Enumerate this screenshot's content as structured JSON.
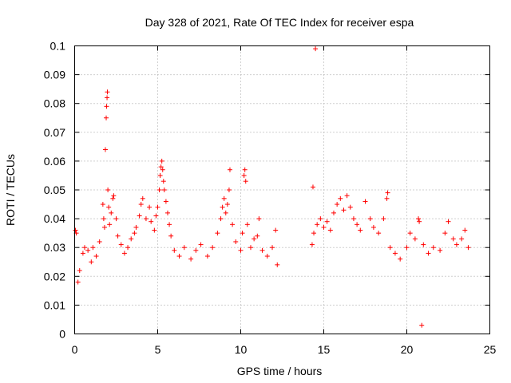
{
  "chart_data": {
    "type": "scatter",
    "title": "Day 328 of 2021, Rate Of TEC Index for receiver espa",
    "xlabel": "GPS time / hours",
    "ylabel": "ROTI / TECUs",
    "xlim": [
      0,
      25
    ],
    "ylim": [
      0,
      0.1
    ],
    "x_ticks": [
      "0",
      "5",
      "10",
      "15",
      "20",
      "25"
    ],
    "y_ticks": [
      "0",
      "0.01",
      "0.02",
      "0.03",
      "0.04",
      "0.05",
      "0.06",
      "0.07",
      "0.08",
      "0.09",
      "0.1"
    ],
    "grid": true,
    "marker": "+",
    "marker_color": "#ff0000",
    "series": [
      {
        "points": [
          [
            0.05,
            0.036
          ],
          [
            0.1,
            0.035
          ],
          [
            0.2,
            0.018
          ],
          [
            0.3,
            0.022
          ],
          [
            0.5,
            0.028
          ],
          [
            0.6,
            0.03
          ],
          [
            0.8,
            0.029
          ],
          [
            1.0,
            0.025
          ],
          [
            1.1,
            0.03
          ],
          [
            1.3,
            0.027
          ],
          [
            1.5,
            0.032
          ],
          [
            1.7,
            0.045
          ],
          [
            1.75,
            0.04
          ],
          [
            1.8,
            0.037
          ],
          [
            1.85,
            0.064
          ],
          [
            1.9,
            0.075
          ],
          [
            1.92,
            0.079
          ],
          [
            1.95,
            0.082
          ],
          [
            1.97,
            0.084
          ],
          [
            2.0,
            0.05
          ],
          [
            2.05,
            0.044
          ],
          [
            2.1,
            0.038
          ],
          [
            2.2,
            0.042
          ],
          [
            2.3,
            0.047
          ],
          [
            2.35,
            0.048
          ],
          [
            2.5,
            0.04
          ],
          [
            2.6,
            0.034
          ],
          [
            2.8,
            0.031
          ],
          [
            3.0,
            0.028
          ],
          [
            3.2,
            0.03
          ],
          [
            3.4,
            0.033
          ],
          [
            3.6,
            0.035
          ],
          [
            3.7,
            0.037
          ],
          [
            3.9,
            0.041
          ],
          [
            4.0,
            0.045
          ],
          [
            4.1,
            0.047
          ],
          [
            4.3,
            0.04
          ],
          [
            4.5,
            0.044
          ],
          [
            4.6,
            0.039
          ],
          [
            4.8,
            0.036
          ],
          [
            4.9,
            0.041
          ],
          [
            5.0,
            0.044
          ],
          [
            5.1,
            0.05
          ],
          [
            5.15,
            0.055
          ],
          [
            5.2,
            0.058
          ],
          [
            5.25,
            0.06
          ],
          [
            5.3,
            0.057
          ],
          [
            5.35,
            0.053
          ],
          [
            5.4,
            0.05
          ],
          [
            5.5,
            0.046
          ],
          [
            5.6,
            0.042
          ],
          [
            5.7,
            0.038
          ],
          [
            5.8,
            0.034
          ],
          [
            6.0,
            0.029
          ],
          [
            6.3,
            0.027
          ],
          [
            6.6,
            0.03
          ],
          [
            7.0,
            0.026
          ],
          [
            7.3,
            0.029
          ],
          [
            7.6,
            0.031
          ],
          [
            8.0,
            0.027
          ],
          [
            8.3,
            0.03
          ],
          [
            8.6,
            0.035
          ],
          [
            8.8,
            0.04
          ],
          [
            8.9,
            0.044
          ],
          [
            9.0,
            0.047
          ],
          [
            9.1,
            0.042
          ],
          [
            9.2,
            0.045
          ],
          [
            9.3,
            0.05
          ],
          [
            9.35,
            0.057
          ],
          [
            9.5,
            0.038
          ],
          [
            9.7,
            0.032
          ],
          [
            10.0,
            0.029
          ],
          [
            10.1,
            0.035
          ],
          [
            10.2,
            0.055
          ],
          [
            10.25,
            0.057
          ],
          [
            10.3,
            0.053
          ],
          [
            10.4,
            0.038
          ],
          [
            10.6,
            0.03
          ],
          [
            10.8,
            0.033
          ],
          [
            11.0,
            0.034
          ],
          [
            11.1,
            0.04
          ],
          [
            11.3,
            0.029
          ],
          [
            11.6,
            0.027
          ],
          [
            11.9,
            0.03
          ],
          [
            12.1,
            0.036
          ],
          [
            12.2,
            0.024
          ],
          [
            14.3,
            0.031
          ],
          [
            14.35,
            0.051
          ],
          [
            14.4,
            0.035
          ],
          [
            14.5,
            0.099
          ],
          [
            14.6,
            0.038
          ],
          [
            14.8,
            0.04
          ],
          [
            15.0,
            0.037
          ],
          [
            15.2,
            0.039
          ],
          [
            15.4,
            0.036
          ],
          [
            15.6,
            0.042
          ],
          [
            15.8,
            0.045
          ],
          [
            16.0,
            0.047
          ],
          [
            16.2,
            0.043
          ],
          [
            16.4,
            0.048
          ],
          [
            16.6,
            0.044
          ],
          [
            16.8,
            0.04
          ],
          [
            17.0,
            0.038
          ],
          [
            17.2,
            0.036
          ],
          [
            17.5,
            0.046
          ],
          [
            17.8,
            0.04
          ],
          [
            18.0,
            0.037
          ],
          [
            18.3,
            0.035
          ],
          [
            18.6,
            0.04
          ],
          [
            18.8,
            0.047
          ],
          [
            18.85,
            0.049
          ],
          [
            19.0,
            0.03
          ],
          [
            19.3,
            0.028
          ],
          [
            19.6,
            0.026
          ],
          [
            20.0,
            0.03
          ],
          [
            20.2,
            0.035
          ],
          [
            20.5,
            0.033
          ],
          [
            20.7,
            0.04
          ],
          [
            20.75,
            0.039
          ],
          [
            20.9,
            0.003
          ],
          [
            21.0,
            0.031
          ],
          [
            21.3,
            0.028
          ],
          [
            21.6,
            0.03
          ],
          [
            22.0,
            0.029
          ],
          [
            22.3,
            0.035
          ],
          [
            22.5,
            0.039
          ],
          [
            22.8,
            0.033
          ],
          [
            23.0,
            0.031
          ],
          [
            23.3,
            0.033
          ],
          [
            23.5,
            0.036
          ],
          [
            23.7,
            0.03
          ]
        ]
      }
    ]
  }
}
